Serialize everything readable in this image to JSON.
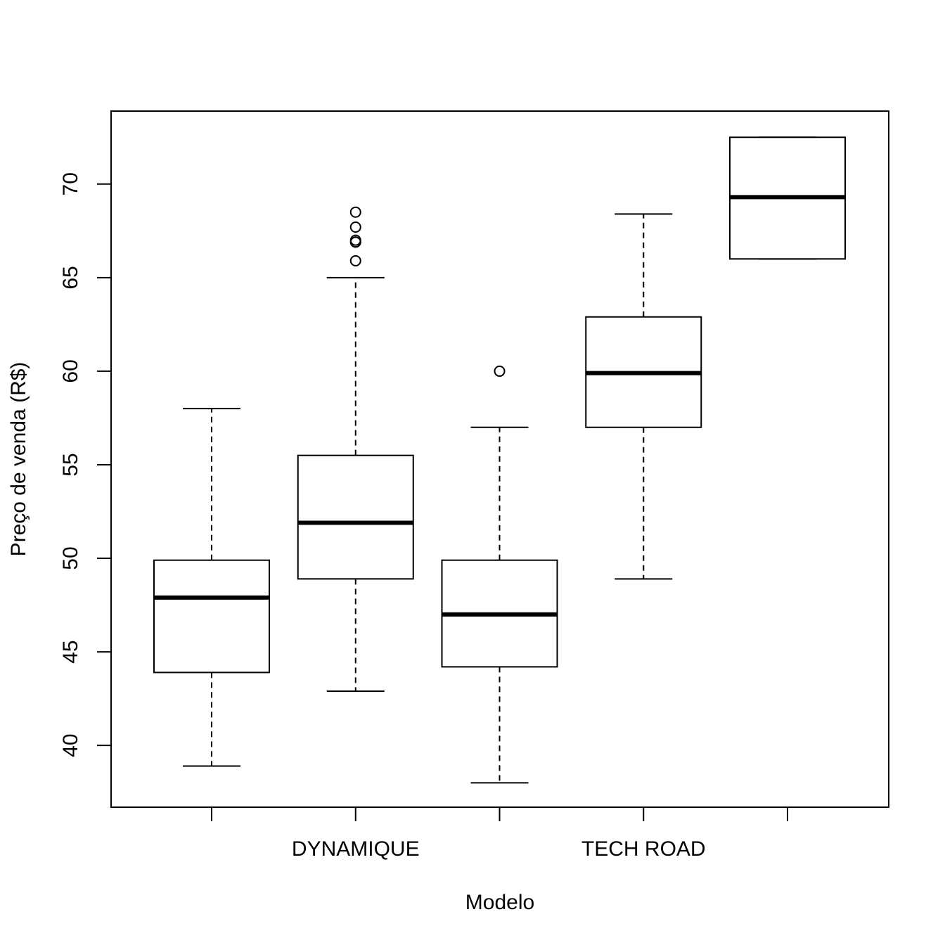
{
  "chart_data": {
    "type": "box",
    "xlabel": "Modelo",
    "ylabel": "Preço de venda (R$)",
    "ylim": [
      36.7,
      73.9
    ],
    "yticks": [
      40,
      45,
      50,
      55,
      60,
      65,
      70
    ],
    "categories": [
      "",
      "DYNAMIQUE",
      "",
      "TECH ROAD",
      ""
    ],
    "boxes": [
      {
        "category": "",
        "whisker_low": 38.9,
        "q1": 43.9,
        "median": 47.9,
        "q3": 49.9,
        "whisker_high": 58.0,
        "outliers": []
      },
      {
        "category": "DYNAMIQUE",
        "whisker_low": 42.9,
        "q1": 48.9,
        "median": 51.9,
        "q3": 55.5,
        "whisker_high": 65.0,
        "outliers": [
          65.9,
          66.9,
          66.9,
          67.0,
          67.7,
          68.5
        ]
      },
      {
        "category": "",
        "whisker_low": 38.0,
        "q1": 44.2,
        "median": 47.0,
        "q3": 49.9,
        "whisker_high": 57.0,
        "outliers": [
          60.0
        ]
      },
      {
        "category": "TECH ROAD",
        "whisker_low": 48.9,
        "q1": 57.0,
        "median": 59.9,
        "q3": 62.9,
        "whisker_high": 68.4,
        "outliers": []
      },
      {
        "category": "",
        "whisker_low": 66.0,
        "q1": 66.0,
        "median": 69.3,
        "q3": 72.5,
        "whisker_high": 72.5,
        "outliers": []
      }
    ],
    "grid": false,
    "legend": "none"
  }
}
